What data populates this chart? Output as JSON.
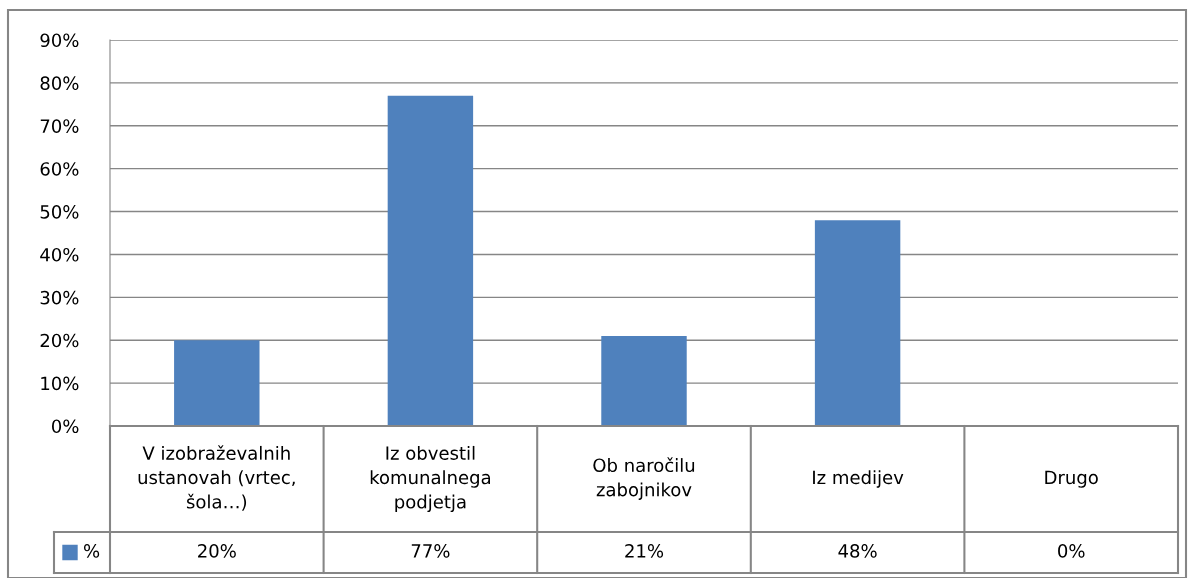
{
  "chart_data": {
    "type": "bar",
    "categories": [
      "V izobraževalnih\nustanovah (vrtec,\nšola…)",
      "Iz obvestil\nkomunalnega\npodjetja",
      "Ob naročilu\nzabojnikov",
      "Iz medijev",
      "Drugo"
    ],
    "series": [
      {
        "name": "%",
        "color": "#4f81bd",
        "values": [
          20,
          77,
          21,
          48,
          0
        ],
        "value_labels": [
          "20%",
          "77%",
          "21%",
          "48%",
          "0%"
        ]
      }
    ],
    "ylim": [
      0,
      90
    ],
    "yticks": [
      {
        "value": 0,
        "label": "0%"
      },
      {
        "value": 10,
        "label": "10%"
      },
      {
        "value": 20,
        "label": "20%"
      },
      {
        "value": 30,
        "label": "30%"
      },
      {
        "value": 40,
        "label": "40%"
      },
      {
        "value": 50,
        "label": "50%"
      },
      {
        "value": 60,
        "label": "60%"
      },
      {
        "value": 70,
        "label": "70%"
      },
      {
        "value": 80,
        "label": "80%"
      },
      {
        "value": 90,
        "label": "90%"
      }
    ],
    "grid": "y",
    "legend": "bottom"
  }
}
